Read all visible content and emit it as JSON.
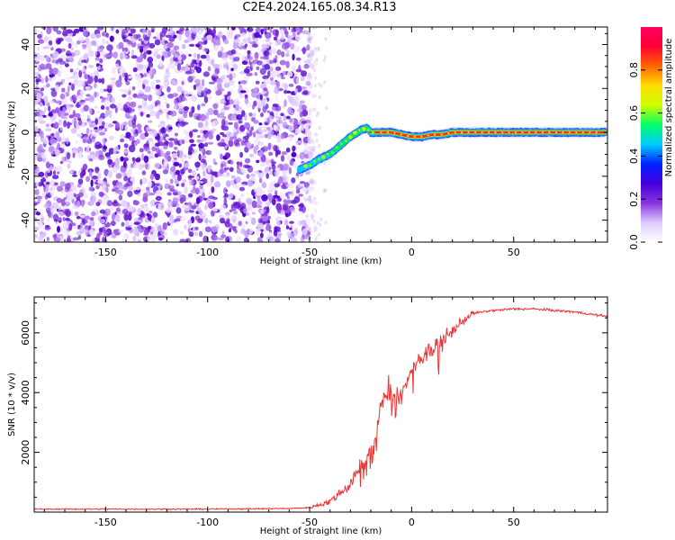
{
  "title": "C2E4.2024.165.08.34.R13",
  "chart_data": [
    {
      "type": "heatmap",
      "xlabel": "Height of straight line (km)",
      "ylabel": "Frequency (Hz)",
      "xlim": [
        -185,
        96
      ],
      "ylim": [
        -50,
        48
      ],
      "xticks": [
        -150,
        -100,
        -50,
        0,
        50
      ],
      "yticks": [
        -40,
        -20,
        0,
        20,
        40
      ],
      "noise_region_x": [
        -185,
        -47
      ],
      "signal_track": {
        "x": [
          -55,
          -50,
          -45,
          -40,
          -35,
          -30,
          -25,
          -22,
          -20,
          -15,
          -10,
          -5,
          0,
          5,
          10,
          15,
          20,
          30,
          50,
          70,
          95
        ],
        "y": [
          -17,
          -15,
          -12,
          -10,
          -6,
          -2,
          1,
          2,
          0,
          0,
          0,
          -1,
          -2,
          -2,
          -1,
          -1,
          0,
          0,
          0,
          0,
          0
        ]
      },
      "colorbar": {
        "label": "Normalized spectral amplitude",
        "range": [
          0,
          1
        ],
        "ticks": [
          "0.0",
          "0.2",
          "0.4",
          "0.6",
          "0.8"
        ],
        "colors": [
          "#ffffff",
          "#ddccff",
          "#8833dd",
          "#4400dd",
          "#0022ff",
          "#00ccff",
          "#00ff66",
          "#ccff00",
          "#ffdd00",
          "#ff6600",
          "#ff0033",
          "#ff0066"
        ]
      }
    },
    {
      "type": "line",
      "xlabel": "Height of straight line (km)",
      "ylabel": "SNR (10 * v/v)",
      "xlim": [
        -185,
        96
      ],
      "ylim": [
        0,
        7200
      ],
      "xticks": [
        -150,
        -100,
        -50,
        0,
        50
      ],
      "yticks": [
        2000,
        4000,
        6000
      ],
      "line_color": "#ee3333",
      "series": [
        {
          "x": [
            -185,
            -150,
            -100,
            -60,
            -50,
            -40,
            -35,
            -30,
            -27,
            -25,
            -22,
            -20,
            -18,
            -16,
            -15,
            -13,
            -10,
            -8,
            -5,
            -3,
            0,
            3,
            5,
            8,
            10,
            13,
            15,
            20,
            25,
            30,
            40,
            50,
            60,
            70,
            80,
            90,
            96
          ],
          "y": [
            100,
            100,
            100,
            120,
            150,
            350,
            650,
            900,
            1300,
            1600,
            1750,
            1900,
            2400,
            3300,
            3600,
            3900,
            3800,
            3700,
            4100,
            4300,
            4700,
            5100,
            5100,
            5500,
            5300,
            5600,
            5700,
            6050,
            6400,
            6650,
            6750,
            6800,
            6800,
            6750,
            6700,
            6600,
            6550
          ]
        }
      ]
    }
  ]
}
